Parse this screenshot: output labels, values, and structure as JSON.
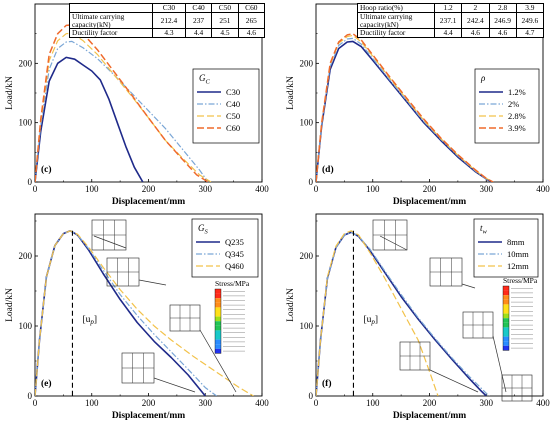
{
  "axis_common": {
    "xlabel": "Displacement/mm",
    "ylabel": "Load/kN",
    "x_ticks": [
      "0",
      "100",
      "200",
      "300",
      "400"
    ],
    "y_ticks": [
      "0",
      "100",
      "200"
    ]
  },
  "panels": [
    {
      "tag": "(c)",
      "legend_title_main": "G",
      "legend_title_sub": "C",
      "legend_items": [
        "C30",
        "C40",
        "C50",
        "C60"
      ],
      "table": {
        "header": [
          "",
          "C30",
          "C40",
          "C50",
          "C60"
        ],
        "rows": [
          [
            "Ultimate carrying capacity(kN)",
            "212.4",
            "237",
            "251",
            "265"
          ],
          [
            "Ductility factor",
            "4.3",
            "4.4",
            "4.5",
            "4.6"
          ]
        ]
      }
    },
    {
      "tag": "(d)",
      "legend_title_main": "ρ",
      "legend_title_sub": "",
      "legend_items": [
        "1.2%",
        "2%",
        "2.8%",
        "3.9%"
      ],
      "table": {
        "header": [
          "Hoop ratio(%)",
          "1.2",
          "2",
          "2.8",
          "3.9"
        ],
        "rows": [
          [
            "Ultimate carrying capacity(kN)",
            "237.1",
            "242.4",
            "246.9",
            "249.6"
          ],
          [
            "Ductility factor",
            "4.4",
            "4.6",
            "4.6",
            "4.7"
          ]
        ]
      }
    },
    {
      "tag": "(e)",
      "legend_title_main": "G",
      "legend_title_sub": "S",
      "legend_items": [
        "Q235",
        "Q345",
        "Q460"
      ],
      "marker_label": "[u",
      "marker_sub": "p",
      "stress_title": "Stress/MPa"
    },
    {
      "tag": "(f)",
      "legend_title_main": "t",
      "legend_title_sub": "w",
      "legend_items": [
        "8mm",
        "10mm",
        "12mm"
      ],
      "marker_label": "[u",
      "marker_sub": "p",
      "stress_title": "Stress/MPa"
    }
  ],
  "colors": {
    "navy": "#1f2a8a",
    "lightblue": "#7aa6d6",
    "gold": "#f2c24a",
    "orange": "#ef6a2c",
    "contour_palette": [
      "#ff2a1a",
      "#ff8c1a",
      "#ffe01a",
      "#9fe01a",
      "#22c455",
      "#19c9c9",
      "#2a8cff",
      "#2233ee"
    ]
  },
  "chart_data": [
    {
      "type": "line",
      "title": "(c)",
      "xlabel": "Displacement/mm",
      "ylabel": "Load/kN",
      "xlim": [
        0,
        400
      ],
      "ylim": [
        0,
        300
      ],
      "series": [
        {
          "name": "C30",
          "x": [
            0,
            10,
            25,
            40,
            55,
            70,
            85,
            100,
            115,
            130,
            145,
            160,
            175,
            190
          ],
          "y": [
            0,
            85,
            170,
            200,
            210,
            207,
            197,
            187,
            172,
            140,
            100,
            60,
            25,
            0
          ]
        },
        {
          "name": "C40",
          "x": [
            0,
            10,
            25,
            40,
            55,
            65,
            85,
            110,
            140,
            170,
            200,
            230,
            260,
            290,
            305
          ],
          "y": [
            0,
            95,
            190,
            225,
            236,
            237,
            226,
            208,
            180,
            150,
            120,
            90,
            55,
            20,
            0
          ]
        },
        {
          "name": "C50",
          "x": [
            0,
            10,
            25,
            40,
            55,
            65,
            85,
            110,
            140,
            170,
            200,
            230,
            260,
            290,
            310
          ],
          "y": [
            0,
            100,
            205,
            238,
            250,
            251,
            238,
            215,
            180,
            145,
            108,
            70,
            40,
            12,
            0
          ]
        },
        {
          "name": "C60",
          "x": [
            0,
            10,
            25,
            40,
            55,
            65,
            85,
            110,
            140,
            170,
            200,
            230,
            260,
            285,
            305
          ],
          "y": [
            0,
            105,
            215,
            250,
            264,
            265,
            250,
            223,
            185,
            147,
            108,
            70,
            38,
            12,
            0
          ]
        }
      ]
    },
    {
      "type": "line",
      "title": "(d)",
      "xlabel": "Displacement/mm",
      "ylabel": "Load/kN",
      "xlim": [
        0,
        400
      ],
      "ylim": [
        0,
        300
      ],
      "series": [
        {
          "name": "1.2%",
          "x": [
            0,
            10,
            25,
            40,
            55,
            65,
            80,
            100,
            130,
            160,
            190,
            220,
            250,
            280,
            300,
            310
          ],
          "y": [
            0,
            95,
            190,
            225,
            236,
            237,
            228,
            205,
            170,
            135,
            100,
            70,
            42,
            18,
            5,
            0
          ]
        },
        {
          "name": "2%",
          "x": [
            0,
            10,
            25,
            40,
            55,
            65,
            80,
            100,
            130,
            160,
            190,
            220,
            250,
            280,
            300,
            310
          ],
          "y": [
            0,
            97,
            195,
            230,
            241,
            242,
            232,
            208,
            172,
            137,
            102,
            72,
            44,
            19,
            5,
            0
          ]
        },
        {
          "name": "2.8%",
          "x": [
            0,
            10,
            25,
            40,
            55,
            65,
            80,
            100,
            130,
            160,
            190,
            220,
            250,
            280,
            300,
            312
          ],
          "y": [
            0,
            99,
            198,
            234,
            245,
            247,
            236,
            212,
            175,
            139,
            104,
            73,
            45,
            20,
            6,
            0
          ]
        },
        {
          "name": "3.9%",
          "x": [
            0,
            10,
            25,
            40,
            55,
            65,
            80,
            100,
            130,
            160,
            190,
            220,
            250,
            280,
            300,
            312
          ],
          "y": [
            0,
            100,
            200,
            236,
            248,
            250,
            239,
            214,
            177,
            141,
            106,
            74,
            46,
            21,
            6,
            0
          ]
        }
      ]
    },
    {
      "type": "line",
      "title": "(e)",
      "xlabel": "Displacement/mm",
      "ylabel": "Load/kN",
      "xlim": [
        0,
        400
      ],
      "ylim": [
        0,
        260
      ],
      "series": [
        {
          "name": "Q235",
          "x": [
            0,
            8,
            20,
            35,
            50,
            62,
            75,
            95,
            120,
            150,
            180,
            210,
            240,
            270,
            290,
            300
          ],
          "y": [
            0,
            80,
            170,
            215,
            232,
            236,
            230,
            208,
            175,
            138,
            105,
            78,
            55,
            30,
            10,
            0
          ]
        },
        {
          "name": "Q345",
          "x": [
            0,
            8,
            20,
            35,
            50,
            62,
            75,
            95,
            120,
            150,
            180,
            210,
            240,
            270,
            300,
            320
          ],
          "y": [
            0,
            80,
            170,
            215,
            232,
            236,
            230,
            210,
            180,
            145,
            115,
            88,
            63,
            38,
            12,
            0
          ]
        },
        {
          "name": "Q460",
          "x": [
            0,
            8,
            20,
            35,
            50,
            62,
            75,
            95,
            120,
            150,
            180,
            210,
            240,
            280,
            320,
            360,
            385
          ],
          "y": [
            0,
            80,
            170,
            215,
            232,
            236,
            231,
            212,
            184,
            152,
            124,
            100,
            80,
            56,
            34,
            12,
            0
          ]
        }
      ]
    },
    {
      "type": "line",
      "title": "(f)",
      "xlabel": "Displacement/mm",
      "ylabel": "Load/kN",
      "xlim": [
        0,
        400
      ],
      "ylim": [
        0,
        260
      ],
      "series": [
        {
          "name": "8mm",
          "x": [
            0,
            8,
            20,
            35,
            50,
            62,
            75,
            95,
            120,
            150,
            180,
            210,
            240,
            270,
            290,
            300
          ],
          "y": [
            0,
            80,
            168,
            212,
            230,
            234,
            228,
            208,
            178,
            142,
            110,
            80,
            52,
            25,
            8,
            0
          ]
        },
        {
          "name": "10mm",
          "x": [
            0,
            8,
            20,
            35,
            50,
            62,
            75,
            95,
            120,
            150,
            180,
            210,
            240,
            270,
            295,
            305
          ],
          "y": [
            0,
            80,
            168,
            212,
            230,
            234,
            228,
            210,
            180,
            145,
            112,
            82,
            54,
            28,
            8,
            0
          ]
        },
        {
          "name": "12mm",
          "x": [
            0,
            8,
            20,
            35,
            50,
            62,
            75,
            95,
            120,
            150,
            180,
            200,
            215
          ],
          "y": [
            0,
            80,
            170,
            214,
            232,
            236,
            230,
            205,
            170,
            125,
            80,
            35,
            0
          ]
        }
      ]
    }
  ]
}
